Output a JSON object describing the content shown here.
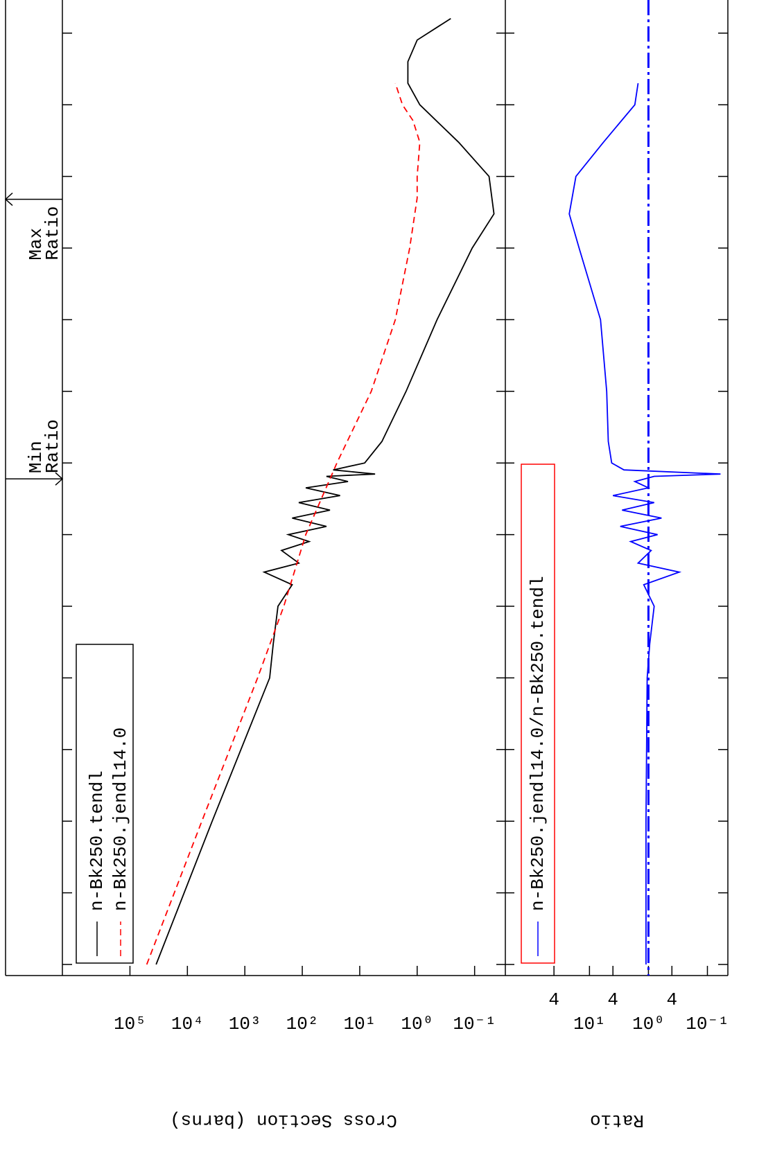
{
  "chart_data": [
    {
      "type": "line",
      "ylabel": "Cross Section (barns)",
      "xscale": "log",
      "yscale": "log",
      "xlim": [
        7e-06,
        290000000.0
      ],
      "xticks": [
        1e-05,
        0.0001,
        0.001,
        0.01,
        0.1,
        1,
        10,
        100,
        1000,
        10000.0,
        100000.0,
        1000000.0,
        10000000.0,
        100000000.0
      ],
      "ylim": [
        0.03,
        1500000.0
      ],
      "yticks": [
        {
          "value": 100000,
          "label": "10⁵"
        },
        {
          "value": 10000,
          "label": "10⁴"
        },
        {
          "value": 1000,
          "label": "10³"
        },
        {
          "value": 100,
          "label": "10²"
        },
        {
          "value": 10,
          "label": "10¹"
        },
        {
          "value": 1,
          "label": "10⁰"
        },
        {
          "value": 0.1,
          "label": "10⁻¹"
        }
      ],
      "legend": "upper left",
      "series": [
        {
          "name": "n-Bk250.tendl",
          "color": "#000000",
          "dash": "solid",
          "x": [
            1e-05,
            0.001,
            0.1,
            0.3,
            1,
            2,
            3,
            4,
            6,
            8,
            10,
            13,
            17,
            22,
            28,
            35,
            45,
            55,
            65,
            70,
            80,
            100,
            200,
            1000,
            10000.0,
            100000.0,
            300000.0,
            1000000.0,
            3000000.0,
            10000000.0,
            20000000.0,
            40000000.0,
            80000000.0,
            160000000.0
          ],
          "values": [
            35000,
            3700,
            370,
            320,
            265,
            150,
            460,
            115,
            230,
            76,
            175,
            38,
            150,
            33,
            115,
            22,
            87,
            16,
            38,
            5.4,
            29,
            8.2,
            4.1,
            1.56,
            0.45,
            0.11,
            0.046,
            0.056,
            0.19,
            0.9,
            1.45,
            1.45,
            1.0,
            0.26
          ]
        },
        {
          "name": "n-Bk250.jendl14.0",
          "color": "#ff0000",
          "dash": "dashed",
          "x": [
            1e-05,
            0.001,
            0.1,
            1,
            10,
            100,
            1000,
            10000.0,
            100000.0,
            500000.0,
            1000000.0,
            3000000.0,
            6000000.0,
            10000000.0,
            20000000.0
          ],
          "values": [
            51000,
            5600,
            600,
            210,
            87,
            25,
            6.3,
            2.4,
            1.35,
            1.0,
            1.0,
            0.9,
            1.18,
            1.8,
            2.4
          ]
        }
      ],
      "annotations": [
        {
          "lines": [
            "Min",
            "Ratio"
          ],
          "x": 60,
          "arrow": "right"
        },
        {
          "lines": [
            "Max",
            "Ratio"
          ],
          "x": 480000,
          "arrow": "left"
        }
      ]
    },
    {
      "type": "line",
      "ylabel": "Ratio",
      "xscale": "log",
      "yscale": "log",
      "ylim": [
        0.045,
        260
      ],
      "yticks": [
        {
          "value": 40,
          "label": "4"
        },
        {
          "value": 10,
          "label": "10¹"
        },
        {
          "value": 4,
          "label": "4"
        },
        {
          "value": 1,
          "label": "10⁰"
        },
        {
          "value": 0.4,
          "label": "4"
        },
        {
          "value": 0.1,
          "label": "10⁻¹"
        }
      ],
      "reference_line": 1,
      "reference_color": "#0000ff",
      "legend": "upper left",
      "legend_box_color": "#ff0000",
      "series": [
        {
          "name": "n-Bk250.jendl14.0/n-Bk250.tendl",
          "color": "#0000ff",
          "dash": "solid",
          "x": [
            1e-05,
            0.001,
            0.1,
            0.3,
            1,
            2,
            3,
            4,
            6,
            8,
            10,
            13,
            17,
            22,
            28,
            35,
            45,
            55,
            65,
            70,
            80,
            100,
            200,
            1000,
            10000.0,
            100000.0,
            300000.0,
            1000000.0,
            3000000.0,
            10000000.0,
            20000000.0
          ],
          "values": [
            1.1,
            1.1,
            1.05,
            0.95,
            0.8,
            1.2,
            0.3,
            1.5,
            0.9,
            2,
            0.7,
            3,
            0.6,
            2.8,
            0.8,
            4,
            1,
            1.7,
            0.8,
            0.06,
            2.6,
            4.2,
            4.8,
            5.1,
            6.5,
            15,
            22,
            17,
            5.8,
            1.7,
            1.5
          ]
        }
      ]
    }
  ]
}
